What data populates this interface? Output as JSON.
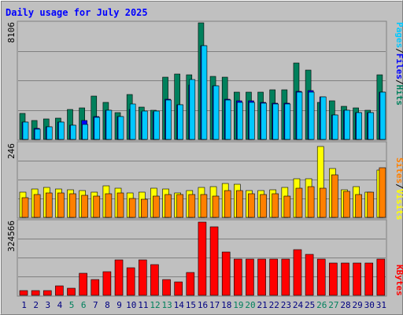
{
  "chart_data": {
    "type": "bar",
    "title": "Daily usage for July 2025",
    "x": {
      "labels": [
        "1",
        "2",
        "3",
        "4",
        "5",
        "6",
        "7",
        "8",
        "9",
        "10",
        "11",
        "12",
        "13",
        "14",
        "15",
        "16",
        "17",
        "18",
        "19",
        "20",
        "21",
        "22",
        "23",
        "24",
        "25",
        "26",
        "27",
        "28",
        "29",
        "30",
        "31"
      ],
      "weekend_days": [
        "5",
        "6",
        "12",
        "13",
        "19",
        "20",
        "26",
        "27"
      ],
      "weekend_color": "#00805c",
      "weekday_color": "#000080"
    },
    "panels": [
      {
        "id": "hits",
        "max_label": "8106",
        "ymax": 8106,
        "series": [
          {
            "name": "Hits",
            "color": "#00805c",
            "values": [
              1800,
              1300,
              1400,
              1500,
              2100,
              2200,
              3000,
              2600,
              1850,
              3100,
              2250,
              2050,
              4350,
              4550,
              4500,
              8100,
              4400,
              4300,
              3300,
              3300,
              3300,
              3450,
              3450,
              5300,
              4800,
              2600,
              2700,
              2300,
              2200,
              2000,
              4500
            ]
          },
          {
            "name": "Files",
            "color": "#0000ff",
            "values": [
              1200,
              750,
              900,
              1200,
              1000,
              1300,
              1600,
              2000,
              1600,
              2100,
              1900,
              1900,
              2800,
              2400,
              3800,
              6500,
              3700,
              2800,
              2700,
              2700,
              2600,
              2500,
              2500,
              3350,
              3400,
              2950,
              1700,
              2000,
              1850,
              1850,
              3300
            ]
          },
          {
            "name": "Pages",
            "color": "#00c8ff",
            "values": [
              1200,
              700,
              850,
              1200,
              1000,
              1050,
              1550,
              2000,
              1600,
              2450,
              1950,
              1950,
              2750,
              2400,
              4150,
              6500,
              3700,
              2750,
              2550,
              2550,
              2500,
              2450,
              2450,
              3300,
              3300,
              2950,
              1700,
              2000,
              1850,
              1850,
              3300
            ]
          }
        ]
      },
      {
        "id": "visits",
        "max_label": "246",
        "ymax": 246,
        "series": [
          {
            "name": "Visits",
            "color": "#ffff00",
            "values": [
              85,
              95,
              100,
              95,
              92,
              90,
              85,
              105,
              98,
              80,
              85,
              98,
              95,
              82,
              90,
              100,
              102,
              112,
              110,
              89,
              90,
              92,
              100,
              128,
              127,
              235,
              163,
              92,
              103,
              85,
              158
            ]
          },
          {
            "name": "Sites",
            "color": "#ff8000",
            "values": [
              65,
              75,
              80,
              80,
              78,
              73,
              70,
              78,
              82,
              62,
              60,
              70,
              75,
              75,
              75,
              75,
              70,
              88,
              90,
              78,
              75,
              78,
              70,
              98,
              102,
              98,
              142,
              87,
              75,
              85,
              165
            ]
          }
        ]
      },
      {
        "id": "kbytes",
        "max_label": "324566",
        "ymax": 324566,
        "series": [
          {
            "name": "KBytes",
            "color": "#ff0000",
            "values": [
              20000,
              20000,
              20000,
              40000,
              30000,
              95000,
              70000,
              105000,
              155000,
              120000,
              155000,
              135000,
              70000,
              60000,
              100000,
              320000,
              300000,
              190000,
              160000,
              160000,
              160000,
              160000,
              160000,
              200000,
              180000,
              160000,
              140000,
              140000,
              140000,
              140000,
              160000
            ]
          }
        ]
      }
    ],
    "legends": [
      {
        "panel": "hits",
        "items": [
          "Pages",
          "Files",
          "Hits"
        ]
      },
      {
        "panel": "visits",
        "items": [
          "Sites",
          "Visits"
        ]
      },
      {
        "panel": "kbytes",
        "items": [
          "KBytes"
        ]
      }
    ],
    "legend_separator": "/",
    "colors": {
      "background": "#c0c0c0",
      "border_light": "#ffffff",
      "border_dark": "#808080",
      "plot_bg": "#c0c0c0",
      "gridline": "#808080",
      "title": "#0000ff",
      "separator": "#000000"
    },
    "grid": true,
    "legend_placement": "right-vertical"
  }
}
